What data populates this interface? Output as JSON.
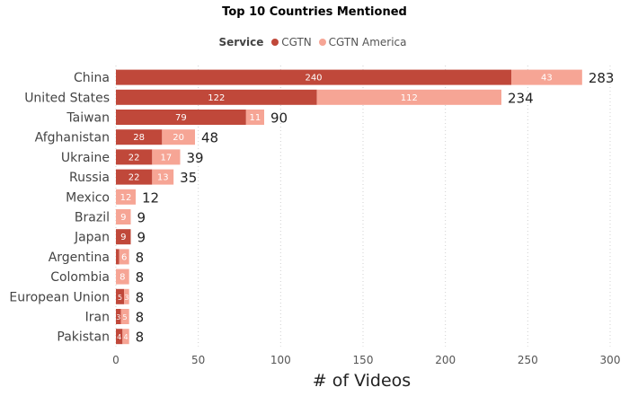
{
  "chart_data": {
    "type": "bar",
    "orientation": "horizontal",
    "stacked": true,
    "title": "Top 10 Countries Mentioned",
    "legend_title": "Service",
    "legend_position": "top",
    "categories": [
      "China",
      "United States",
      "Taiwan",
      "Afghanistan",
      "Ukraine",
      "Russia",
      "Mexico",
      "Brazil",
      "Japan",
      "Argentina",
      "Colombia",
      "European Union",
      "Iran",
      "Pakistan"
    ],
    "series": [
      {
        "name": "CGTN",
        "color": "#c0483a",
        "values": [
          240,
          122,
          79,
          28,
          22,
          22,
          0,
          0,
          9,
          2,
          0,
          5,
          3,
          4
        ],
        "labels": [
          "240",
          "122",
          "79",
          "28",
          "22",
          "22",
          "",
          "",
          "9",
          "",
          "",
          "5",
          "3",
          "4"
        ]
      },
      {
        "name": "CGTN America",
        "color": "#f6a595",
        "values": [
          43,
          112,
          11,
          20,
          17,
          13,
          12,
          9,
          0,
          6,
          8,
          3,
          5,
          4
        ],
        "labels": [
          "43",
          "112",
          "11",
          "20",
          "17",
          "13",
          "12",
          "9",
          "",
          "6",
          "8",
          "3",
          "5",
          "4"
        ]
      }
    ],
    "totals": [
      "283",
      "234",
      "90",
      "48",
      "39",
      "35",
      "12",
      "9",
      "9",
      "8",
      "8",
      "8",
      "8",
      "8"
    ],
    "xlabel": "# of Videos",
    "xlim": [
      0,
      300
    ],
    "xticks": [
      "0",
      "50",
      "100",
      "150",
      "200",
      "250",
      "300"
    ],
    "grid": "vertical dotted"
  }
}
